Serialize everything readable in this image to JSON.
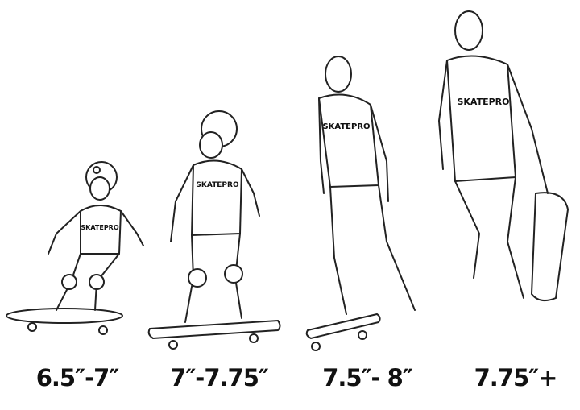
{
  "brand_logo": "SKATEPRO",
  "sizes": [
    {
      "label": "6.5″-7″"
    },
    {
      "label": "7″-7.75″"
    },
    {
      "label": "7.5″- 8″"
    },
    {
      "label": "7.75″+"
    }
  ],
  "colors": {
    "line": "#222222",
    "background": "#ffffff"
  }
}
